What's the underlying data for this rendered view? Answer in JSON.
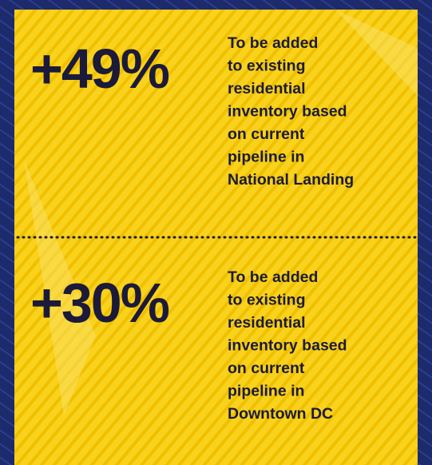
{
  "stats": [
    {
      "value": "+49%",
      "lines": [
        "To be added",
        "to existing",
        "residential",
        "inventory based",
        "on current",
        "pipeline in",
        "National Landing"
      ]
    },
    {
      "value": "+30%",
      "lines": [
        "To be added",
        "to existing",
        "residential",
        "inventory based",
        "on current",
        "pipeline in",
        "Downtown DC"
      ]
    }
  ]
}
